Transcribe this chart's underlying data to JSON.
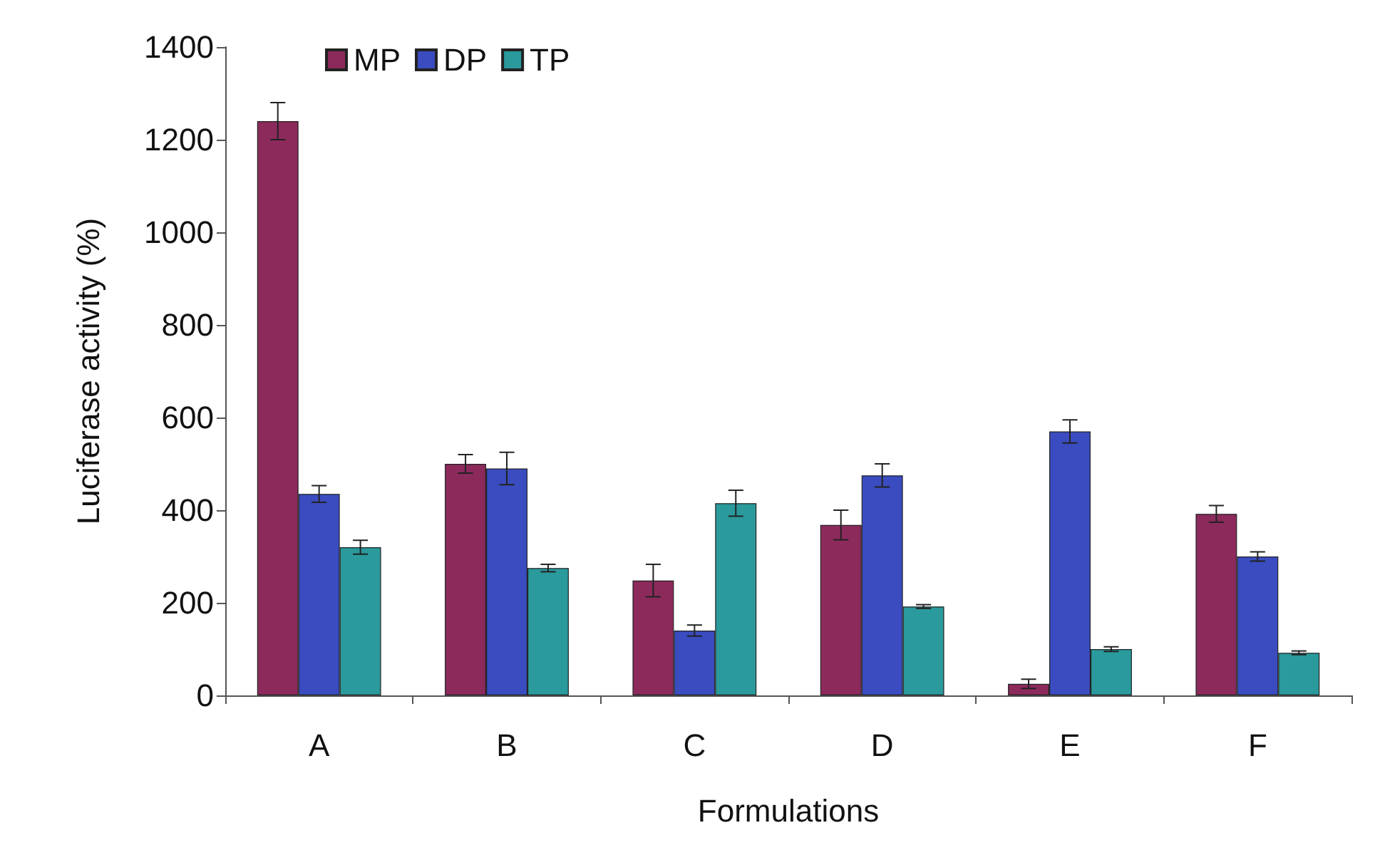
{
  "chart_data": {
    "type": "bar",
    "xlabel": "Formulations",
    "ylabel": "Luciferase activity (%)",
    "categories": [
      "A",
      "B",
      "C",
      "D",
      "E",
      "F"
    ],
    "series": [
      {
        "name": "MP",
        "color": "#8c2a5c",
        "values": [
          1240,
          500,
          248,
          368,
          25,
          392
        ],
        "errors": [
          40,
          20,
          35,
          32,
          10,
          18
        ]
      },
      {
        "name": "DP",
        "color": "#3a4cc0",
        "values": [
          435,
          490,
          140,
          475,
          570,
          300
        ],
        "errors": [
          18,
          35,
          12,
          25,
          25,
          10
        ]
      },
      {
        "name": "TP",
        "color": "#2a9a9c",
        "values": [
          320,
          275,
          415,
          192,
          100,
          92
        ],
        "errors": [
          15,
          8,
          28,
          4,
          5,
          4
        ]
      }
    ],
    "ylim": [
      0,
      1400
    ],
    "yticks": [
      0,
      200,
      400,
      600,
      800,
      1000,
      1200,
      1400
    ],
    "grid": false,
    "legend": "top left"
  }
}
